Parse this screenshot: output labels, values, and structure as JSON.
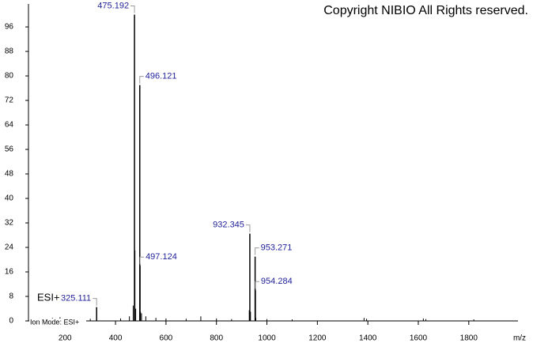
{
  "chart_data": {
    "type": "spectrum",
    "copyright": "Copyright NIBIO All Rights reserved.",
    "mode_label": "ESI+",
    "ion_mode": "Ion Mode: ESI+",
    "x_label": "m/z",
    "color": "#000000",
    "label_color": "#1f1f9a",
    "xlim": [
      55,
      1995
    ],
    "ylim": [
      0,
      103.5
    ],
    "xticks": [
      200,
      400,
      600,
      800,
      1000,
      1200,
      1400,
      1600,
      1800
    ],
    "yticks": [
      0,
      8,
      16,
      24,
      32,
      40,
      48,
      56,
      64,
      72,
      80,
      88,
      96
    ],
    "peaks": {
      "x": [
        325.111,
        475.192,
        496.121,
        497.124,
        932.345,
        953.271,
        954.284
      ],
      "values": [
        4.5,
        100,
        77,
        18,
        28.5,
        21,
        10
      ]
    },
    "minor_peaks": {
      "x": [
        130,
        150,
        165,
        180,
        190,
        240,
        300,
        420,
        455,
        470,
        477,
        480,
        499,
        503,
        520,
        560,
        600,
        680,
        738,
        800,
        860,
        930,
        935,
        956,
        1000,
        1100,
        1385,
        1395,
        1620,
        1630,
        1820
      ],
      "values": [
        0.7,
        1,
        0.8,
        1.2,
        0.8,
        0.6,
        0.7,
        0.8,
        1.5,
        5,
        23,
        4,
        3,
        2.5,
        1.5,
        1,
        0.8,
        0.7,
        1.5,
        0.8,
        0.6,
        3.5,
        3,
        1,
        0.6,
        0.5,
        1,
        0.7,
        0.8,
        0.6,
        0.5
      ]
    }
  }
}
